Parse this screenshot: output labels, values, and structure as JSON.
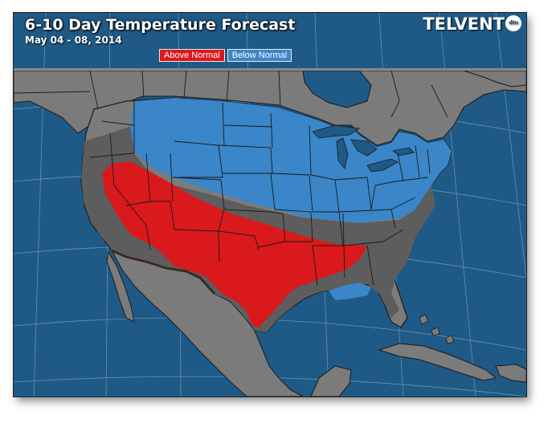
{
  "header": {
    "title": "6-10 Day Temperature Forecast",
    "subtitle": "May 04 - 08, 2014",
    "brand": "TELVENT",
    "brand_badge": "dtn"
  },
  "legend": {
    "items": [
      {
        "label": "Above Normal",
        "color": "#d9191c"
      },
      {
        "label": "Below Normal",
        "color": "#3a86c8"
      }
    ]
  },
  "colors": {
    "ocean": "#1f5a86",
    "land": "#7b7b7b",
    "normal_region": "#5d5d5d",
    "above_normal": "#d9191c",
    "below_normal": "#3a86c8",
    "borders": "#1a1a1a",
    "graticule": "#6fa0c8"
  }
}
